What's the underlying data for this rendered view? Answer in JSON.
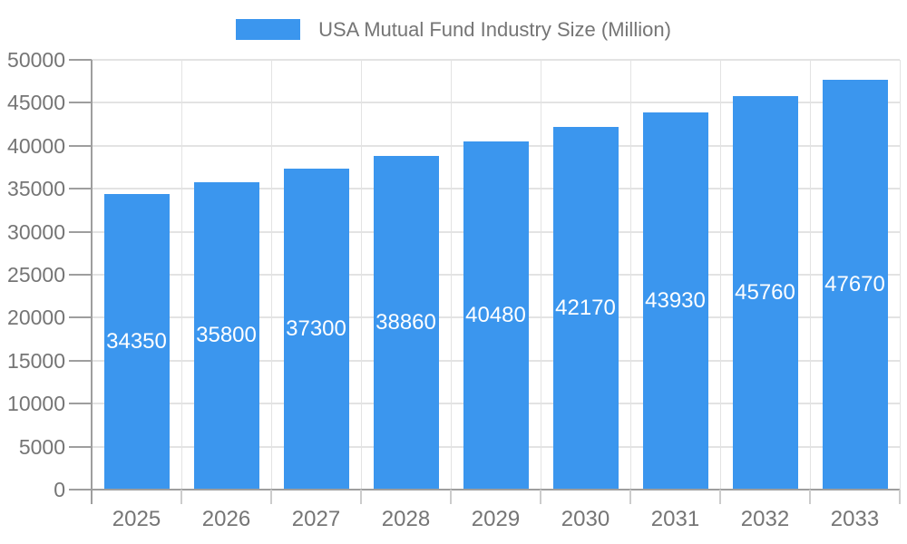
{
  "chart_data": {
    "type": "bar",
    "title": "",
    "legend": "USA Mutual Fund Industry Size (Million)",
    "legend_position": "top-center",
    "categories": [
      "2025",
      "2026",
      "2027",
      "2028",
      "2029",
      "2030",
      "2031",
      "2032",
      "2033"
    ],
    "values": [
      34350,
      35800,
      37300,
      38860,
      40480,
      42170,
      43930,
      45760,
      47670
    ],
    "data_labels": [
      "34350",
      "35800",
      "37300",
      "38860",
      "40480",
      "42170",
      "43930",
      "45760",
      "47670"
    ],
    "xlabel": "",
    "ylabel": "",
    "ylim": [
      0,
      50000
    ],
    "ytick_step": 5000,
    "ytick_labels": [
      "0",
      "5000",
      "10000",
      "15000",
      "20000",
      "25000",
      "30000",
      "35000",
      "40000",
      "45000",
      "50000"
    ],
    "grid": true,
    "data_label_position": "inside-center"
  },
  "colors": {
    "bar": "#3B96EE",
    "grid": "#E3E3E3",
    "axis": "#9E9E9E",
    "tick_mark": "#9E9E9E",
    "xtick_mark": "#CCCCCC",
    "tick_text": "#757575",
    "legend_text": "#757575",
    "bar_label_text": "#FFFFFF",
    "background": "#FFFFFF"
  }
}
